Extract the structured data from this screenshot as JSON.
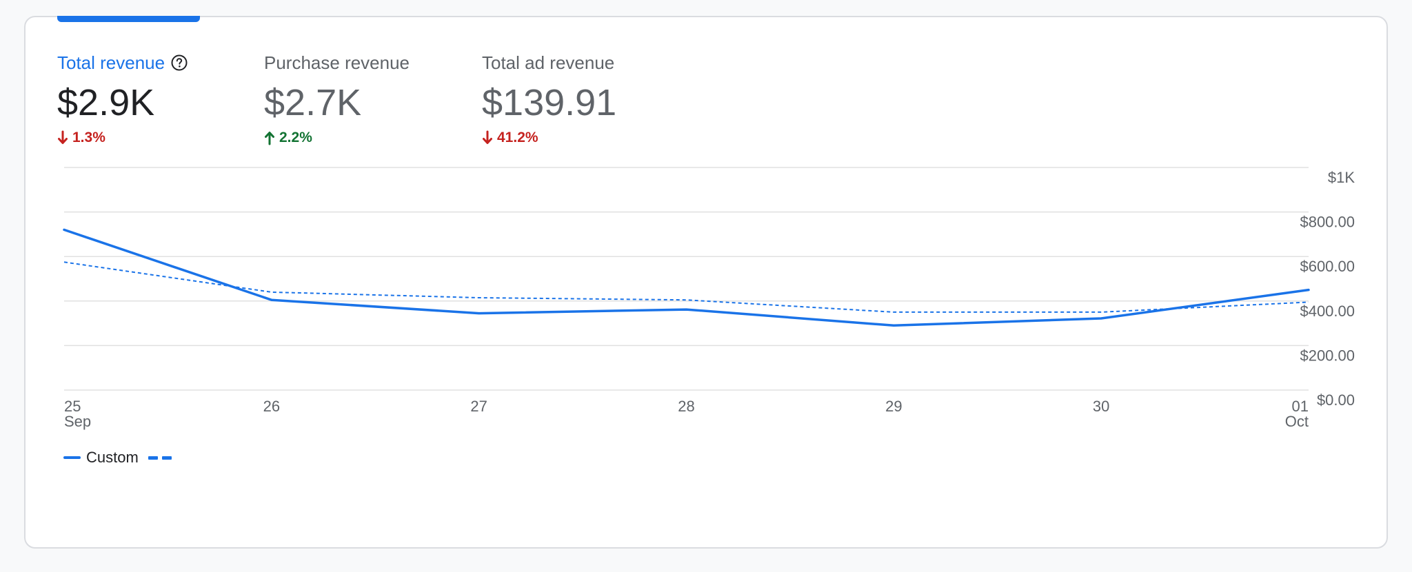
{
  "metrics": [
    {
      "label": "Total revenue",
      "value": "$2.9K",
      "delta": "1.3%",
      "direction": "down",
      "active": true,
      "help_icon": "help-circle-icon"
    },
    {
      "label": "Purchase revenue",
      "value": "$2.7K",
      "delta": "2.2%",
      "direction": "up",
      "active": false
    },
    {
      "label": "Total ad revenue",
      "value": "$139.91",
      "delta": "41.2%",
      "direction": "down",
      "active": false
    }
  ],
  "colors": {
    "accent": "#1a73e8",
    "down": "#c5221f",
    "up": "#137333",
    "gridline": "#e0e0e0",
    "axis_text": "#5f6368"
  },
  "chart_data": {
    "type": "line",
    "categories": [
      "25",
      "26",
      "27",
      "28",
      "29",
      "30",
      "01"
    ],
    "category_sublabels": [
      "Sep",
      "",
      "",
      "",
      "",
      "",
      "Oct"
    ],
    "series": [
      {
        "name": "Custom",
        "style": "solid",
        "values": [
          720,
          405,
          345,
          362,
          290,
          322,
          450
        ]
      },
      {
        "name": "",
        "style": "dashed",
        "values": [
          575,
          440,
          415,
          405,
          350,
          350,
          395
        ]
      }
    ],
    "ylim": [
      0,
      1000
    ],
    "yticks": [
      0,
      200,
      400,
      600,
      800,
      1000
    ],
    "ytick_labels": [
      "$0.00",
      "$200.00",
      "$400.00",
      "$600.00",
      "$800.00",
      "$1K"
    ],
    "grid": true,
    "legend_position": "bottom-left",
    "title": "",
    "xlabel": "",
    "ylabel": ""
  },
  "legend": {
    "items": [
      {
        "label": "Custom",
        "style": "solid"
      },
      {
        "label": "",
        "style": "dashed"
      }
    ]
  }
}
